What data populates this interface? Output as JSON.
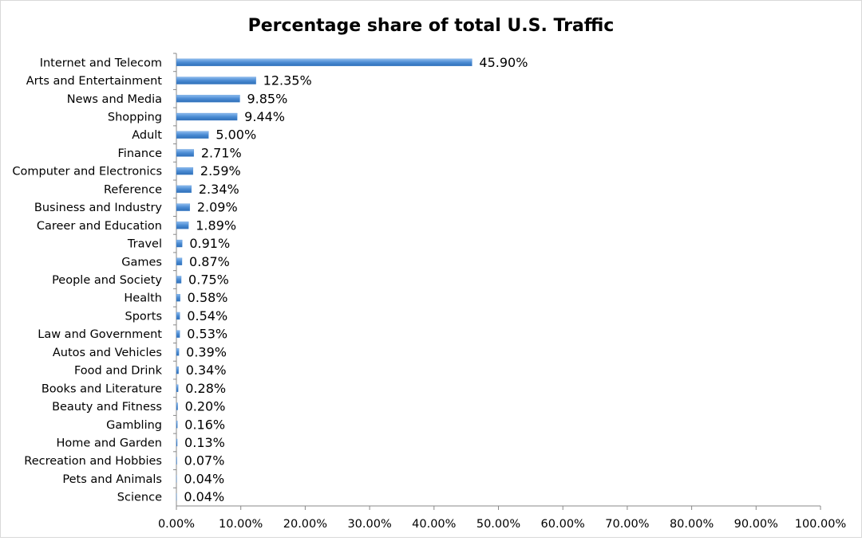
{
  "chart_data": {
    "type": "hbar",
    "title": "Percentage share of total U.S. Traffic",
    "categories": [
      "Internet and Telecom",
      "Arts and Entertainment",
      "News and Media",
      "Shopping",
      "Adult",
      "Finance",
      "Computer and Electronics",
      "Reference",
      "Business and Industry",
      "Career and Education",
      "Travel",
      "Games",
      "People and Society",
      "Health",
      "Sports",
      "Law and Government",
      "Autos and Vehicles",
      "Food and Drink",
      "Books and Literature",
      "Beauty and Fitness",
      "Gambling",
      "Home and Garden",
      "Recreation and Hobbies",
      "Pets and Animals",
      "Science"
    ],
    "values": [
      45.9,
      12.35,
      9.85,
      9.44,
      5.0,
      2.71,
      2.59,
      2.34,
      2.09,
      1.89,
      0.91,
      0.87,
      0.75,
      0.58,
      0.54,
      0.53,
      0.39,
      0.34,
      0.28,
      0.2,
      0.16,
      0.13,
      0.07,
      0.04,
      0.04
    ],
    "value_labels": [
      "45.90%",
      "12.35%",
      "9.85%",
      "9.44%",
      "5.00%",
      "2.71%",
      "2.59%",
      "2.34%",
      "2.09%",
      "1.89%",
      "0.91%",
      "0.87%",
      "0.75%",
      "0.58%",
      "0.54%",
      "0.53%",
      "0.39%",
      "0.34%",
      "0.28%",
      "0.20%",
      "0.16%",
      "0.13%",
      "0.07%",
      "0.04%",
      "0.04%"
    ],
    "color": "#4a8bd3",
    "xlim": [
      0,
      100
    ],
    "xticks": [
      {
        "value": 0,
        "label": "0.00%"
      },
      {
        "value": 10,
        "label": "10.00%"
      },
      {
        "value": 20,
        "label": "20.00%"
      },
      {
        "value": 30,
        "label": "30.00%"
      },
      {
        "value": 40,
        "label": "40.00%"
      },
      {
        "value": 50,
        "label": "50.00%"
      },
      {
        "value": 60,
        "label": "60.00%"
      },
      {
        "value": 70,
        "label": "70.00%"
      },
      {
        "value": 80,
        "label": "80.00%"
      },
      {
        "value": 90,
        "label": "90.00%"
      },
      {
        "value": 100,
        "label": "100.00%"
      }
    ],
    "grid": false
  }
}
